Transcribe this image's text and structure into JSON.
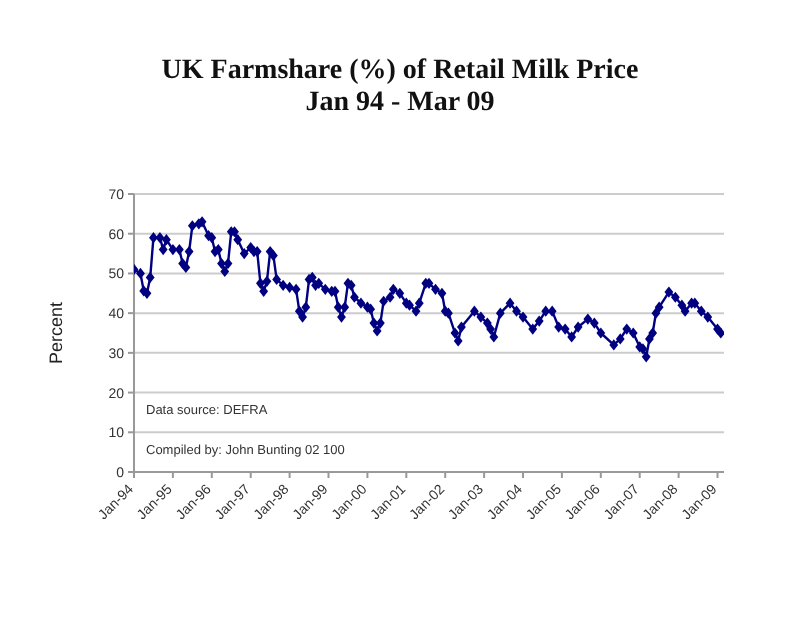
{
  "chart_data": {
    "type": "line",
    "title": "UK Farmshare (%) of Retail Milk Price",
    "subtitle": "Jan 94 - Mar 09",
    "ylabel": "Percent",
    "x": [
      "1994-01",
      "1994-03",
      "1994-04",
      "1994-05",
      "1994-06",
      "1994-07",
      "1994-09",
      "1994-10",
      "1994-11",
      "1995-01",
      "1995-03",
      "1995-04",
      "1995-05",
      "1995-06",
      "1995-07",
      "1995-09",
      "1995-10",
      "1995-12",
      "1996-01",
      "1996-02",
      "1996-03",
      "1996-04",
      "1996-05",
      "1996-06",
      "1996-07",
      "1996-08",
      "1996-09",
      "1996-11",
      "1997-01",
      "1997-02",
      "1997-03",
      "1997-04",
      "1997-05",
      "1997-06",
      "1997-07",
      "1997-08",
      "1997-09",
      "1997-11",
      "1998-01",
      "1998-03",
      "1998-04",
      "1998-05",
      "1998-06",
      "1998-07",
      "1998-08",
      "1998-09",
      "1998-10",
      "1998-12",
      "1999-02",
      "1999-03",
      "1999-04",
      "1999-05",
      "1999-06",
      "1999-07",
      "1999-08",
      "1999-09",
      "1999-11",
      "2000-01",
      "2000-02",
      "2000-03",
      "2000-04",
      "2000-05",
      "2000-06",
      "2000-08",
      "2000-09",
      "2000-11",
      "2001-01",
      "2001-02",
      "2001-04",
      "2001-05",
      "2001-07",
      "2001-08",
      "2001-10",
      "2001-12",
      "2002-01",
      "2002-02",
      "2002-04",
      "2002-05",
      "2002-06",
      "2002-10",
      "2002-12",
      "2003-02",
      "2003-03",
      "2003-04",
      "2003-06",
      "2003-09",
      "2003-11",
      "2004-01",
      "2004-04",
      "2004-06",
      "2004-08",
      "2004-10",
      "2004-12",
      "2005-02",
      "2005-04",
      "2005-06",
      "2005-09",
      "2005-11",
      "2006-01",
      "2006-05",
      "2006-07",
      "2006-09",
      "2006-11",
      "2007-01",
      "2007-02",
      "2007-03",
      "2007-04",
      "2007-05",
      "2007-06",
      "2007-07",
      "2007-10",
      "2007-12",
      "2008-02",
      "2008-03",
      "2008-05",
      "2008-06",
      "2008-08",
      "2008-10",
      "2009-01",
      "2009-02"
    ],
    "series": [
      {
        "color": "#000080",
        "values": [
          51,
          50,
          45.6,
          45,
          49,
          59,
          59,
          56,
          58.5,
          56,
          56,
          52.5,
          51.5,
          55.5,
          62,
          62.5,
          63,
          59.5,
          59,
          55.5,
          56,
          52.5,
          50.5,
          52.5,
          60.5,
          60.5,
          58.5,
          55,
          56.5,
          55.5,
          55.5,
          47.5,
          45.5,
          48,
          55.5,
          54.5,
          48.5,
          47,
          46.5,
          46,
          40.5,
          39,
          41.5,
          48.5,
          49,
          47,
          47.5,
          46,
          45.5,
          45.5,
          41.5,
          39,
          41.5,
          47.5,
          47,
          44,
          42.5,
          41.5,
          41,
          37.5,
          35.5,
          37.5,
          43,
          44,
          46,
          45,
          42.5,
          42,
          40.5,
          42.5,
          47.5,
          47.5,
          46,
          45,
          40.5,
          40,
          35,
          33,
          36.5,
          40.5,
          39,
          37.5,
          36,
          34,
          40,
          42.5,
          40.5,
          39,
          36,
          38,
          40.5,
          40.5,
          36.5,
          36,
          34,
          36.5,
          38.5,
          37.5,
          35,
          32,
          33.5,
          36,
          35,
          31.5,
          31,
          29,
          33.5,
          35,
          40,
          41.5,
          45.3,
          44,
          42,
          40.5,
          42.5,
          42.5,
          40.5,
          39,
          36,
          35
        ]
      }
    ],
    "xlim": [
      "1994-01",
      "2009-03"
    ],
    "xticks": [
      {
        "value": "1994-01",
        "label": "Jan-94"
      },
      {
        "value": "1995-01",
        "label": "Jan-95"
      },
      {
        "value": "1996-01",
        "label": "Jan-96"
      },
      {
        "value": "1997-01",
        "label": "Jan-97"
      },
      {
        "value": "1998-01",
        "label": "Jan-98"
      },
      {
        "value": "1999-01",
        "label": "Jan-99"
      },
      {
        "value": "2000-01",
        "label": "Jan-00"
      },
      {
        "value": "2001-01",
        "label": "Jan-01"
      },
      {
        "value": "2002-01",
        "label": "Jan-02"
      },
      {
        "value": "2003-01",
        "label": "Jan-03"
      },
      {
        "value": "2004-01",
        "label": "Jan-04"
      },
      {
        "value": "2005-01",
        "label": "Jan-05"
      },
      {
        "value": "2006-01",
        "label": "Jan-06"
      },
      {
        "value": "2007-01",
        "label": "Jan-07"
      },
      {
        "value": "2008-01",
        "label": "Jan-08"
      },
      {
        "value": "2009-01",
        "label": "Jan-09"
      }
    ],
    "ylim": [
      0,
      70
    ],
    "yticks": [
      0,
      10,
      20,
      30,
      40,
      50,
      60,
      70
    ],
    "grid": "y",
    "marker": "diamond",
    "line_style": "solid",
    "annotations": [
      "Data source: DEFRA",
      "Compiled by: John Bunting 02 100"
    ]
  }
}
